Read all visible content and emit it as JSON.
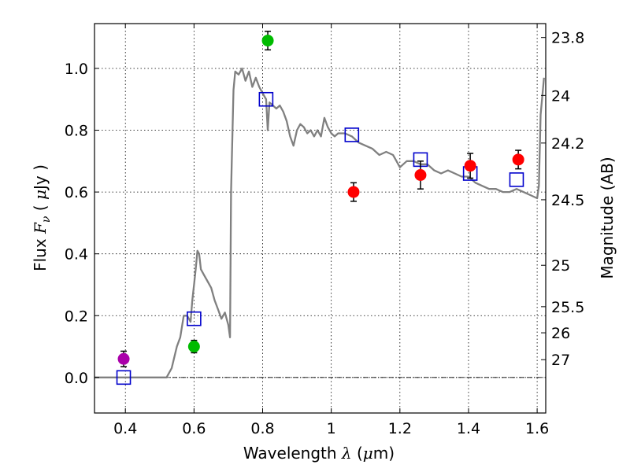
{
  "chart_data": {
    "type": "scatter",
    "title": "",
    "xlabel": "Wavelength  λ (μm)",
    "ylabel": "Flux  Fν  ( μJy )",
    "y2label": "Magnitude (AB)",
    "xlim": [
      0.31,
      1.625
    ],
    "ylim": [
      -0.115,
      1.145
    ],
    "grid": true,
    "legend": "none",
    "x_ticks": [
      0.4,
      0.6,
      0.8,
      1.0,
      1.2,
      1.4,
      1.6
    ],
    "x_tick_labels": [
      "0.4",
      "0.6",
      "0.8",
      "1",
      "1.2",
      "1.4",
      "1.6"
    ],
    "y_ticks": [
      0.0,
      0.2,
      0.4,
      0.6,
      0.8,
      1.0
    ],
    "y_tick_labels": [
      "0.0",
      "0.2",
      "0.4",
      "0.6",
      "0.8",
      "1.0"
    ],
    "y2_ticks": [
      {
        "label": "23.8",
        "flux": 1.1
      },
      {
        "label": "24",
        "flux": 0.9125
      },
      {
        "label": "24.2",
        "flux": 0.7585
      },
      {
        "label": "24.5",
        "flux": 0.575
      },
      {
        "label": "25",
        "flux": 0.363
      },
      {
        "label": "25.5",
        "flux": 0.229
      },
      {
        "label": "26",
        "flux": 0.1445
      },
      {
        "label": "27",
        "flux": 0.0575
      }
    ],
    "colors": {
      "model": "#808080",
      "model_photometry": "#0000cc",
      "purple": "#aa00aa",
      "green": "#00bb00",
      "red": "#ff0000",
      "error_bar": "#000000"
    },
    "series": [
      {
        "kind": "line",
        "color_key": "model",
        "points": [
          [
            0.31,
            0.0
          ],
          [
            0.52,
            0.0
          ],
          [
            0.535,
            0.03
          ],
          [
            0.55,
            0.1
          ],
          [
            0.56,
            0.13
          ],
          [
            0.57,
            0.2
          ],
          [
            0.58,
            0.2
          ],
          [
            0.59,
            0.18
          ],
          [
            0.595,
            0.25
          ],
          [
            0.6,
            0.3
          ],
          [
            0.605,
            0.35
          ],
          [
            0.61,
            0.41
          ],
          [
            0.615,
            0.4
          ],
          [
            0.62,
            0.35
          ],
          [
            0.63,
            0.33
          ],
          [
            0.64,
            0.31
          ],
          [
            0.65,
            0.29
          ],
          [
            0.66,
            0.25
          ],
          [
            0.67,
            0.22
          ],
          [
            0.68,
            0.19
          ],
          [
            0.69,
            0.21
          ],
          [
            0.7,
            0.17
          ],
          [
            0.705,
            0.13
          ],
          [
            0.708,
            0.6
          ],
          [
            0.715,
            0.93
          ],
          [
            0.72,
            0.99
          ],
          [
            0.73,
            0.98
          ],
          [
            0.74,
            1.0
          ],
          [
            0.75,
            0.96
          ],
          [
            0.76,
            0.99
          ],
          [
            0.77,
            0.94
          ],
          [
            0.78,
            0.97
          ],
          [
            0.79,
            0.94
          ],
          [
            0.8,
            0.92
          ],
          [
            0.81,
            0.9
          ],
          [
            0.815,
            0.8
          ],
          [
            0.82,
            0.89
          ],
          [
            0.83,
            0.88
          ],
          [
            0.84,
            0.87
          ],
          [
            0.85,
            0.88
          ],
          [
            0.86,
            0.86
          ],
          [
            0.87,
            0.83
          ],
          [
            0.88,
            0.78
          ],
          [
            0.89,
            0.75
          ],
          [
            0.9,
            0.8
          ],
          [
            0.91,
            0.82
          ],
          [
            0.92,
            0.81
          ],
          [
            0.93,
            0.79
          ],
          [
            0.94,
            0.8
          ],
          [
            0.95,
            0.78
          ],
          [
            0.96,
            0.8
          ],
          [
            0.97,
            0.78
          ],
          [
            0.98,
            0.84
          ],
          [
            0.99,
            0.81
          ],
          [
            1.0,
            0.79
          ],
          [
            1.01,
            0.78
          ],
          [
            1.02,
            0.79
          ],
          [
            1.04,
            0.79
          ],
          [
            1.06,
            0.78
          ],
          [
            1.08,
            0.76
          ],
          [
            1.1,
            0.75
          ],
          [
            1.12,
            0.74
          ],
          [
            1.14,
            0.72
          ],
          [
            1.16,
            0.73
          ],
          [
            1.18,
            0.72
          ],
          [
            1.19,
            0.7
          ],
          [
            1.2,
            0.68
          ],
          [
            1.22,
            0.7
          ],
          [
            1.24,
            0.7
          ],
          [
            1.26,
            0.69
          ],
          [
            1.28,
            0.69
          ],
          [
            1.3,
            0.67
          ],
          [
            1.32,
            0.66
          ],
          [
            1.34,
            0.67
          ],
          [
            1.36,
            0.66
          ],
          [
            1.38,
            0.65
          ],
          [
            1.4,
            0.65
          ],
          [
            1.42,
            0.63
          ],
          [
            1.44,
            0.62
          ],
          [
            1.46,
            0.61
          ],
          [
            1.48,
            0.61
          ],
          [
            1.5,
            0.6
          ],
          [
            1.52,
            0.6
          ],
          [
            1.54,
            0.61
          ],
          [
            1.56,
            0.6
          ],
          [
            1.58,
            0.59
          ],
          [
            1.6,
            0.58
          ],
          [
            1.605,
            0.62
          ],
          [
            1.61,
            0.85
          ],
          [
            1.62,
            0.97
          ]
        ]
      },
      {
        "kind": "model_photometry",
        "color_key": "model_photometry",
        "points": [
          [
            0.395,
            0.0
          ],
          [
            0.6,
            0.19
          ],
          [
            0.81,
            0.9
          ],
          [
            1.06,
            0.785
          ],
          [
            1.26,
            0.705
          ],
          [
            1.405,
            0.66
          ],
          [
            1.54,
            0.64
          ]
        ]
      },
      {
        "kind": "observed",
        "color_key": "purple",
        "points": [
          [
            0.395,
            0.06,
            0.025
          ]
        ]
      },
      {
        "kind": "observed",
        "color_key": "green",
        "points": [
          [
            0.6,
            0.1,
            0.02
          ],
          [
            0.815,
            1.09,
            0.03
          ]
        ]
      },
      {
        "kind": "observed",
        "color_key": "red",
        "points": [
          [
            1.065,
            0.6,
            0.03
          ],
          [
            1.26,
            0.655,
            0.045
          ],
          [
            1.405,
            0.685,
            0.04
          ],
          [
            1.545,
            0.705,
            0.03
          ]
        ]
      }
    ]
  }
}
